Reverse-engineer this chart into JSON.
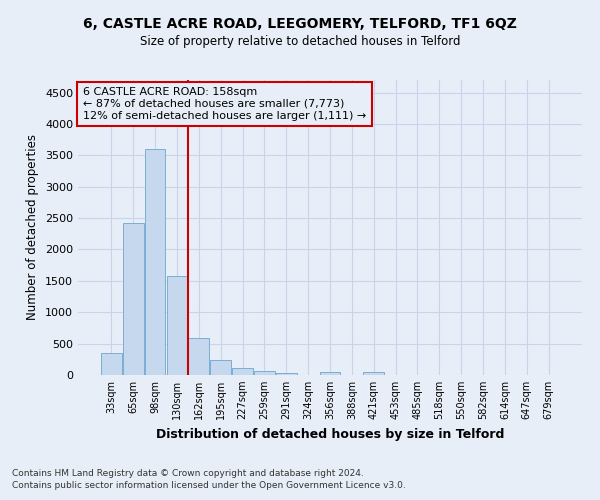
{
  "title": "6, CASTLE ACRE ROAD, LEEGOMERY, TELFORD, TF1 6QZ",
  "subtitle": "Size of property relative to detached houses in Telford",
  "xlabel": "Distribution of detached houses by size in Telford",
  "ylabel": "Number of detached properties",
  "footnote1": "Contains HM Land Registry data © Crown copyright and database right 2024.",
  "footnote2": "Contains public sector information licensed under the Open Government Licence v3.0.",
  "categories": [
    "33sqm",
    "65sqm",
    "98sqm",
    "130sqm",
    "162sqm",
    "195sqm",
    "227sqm",
    "259sqm",
    "291sqm",
    "324sqm",
    "356sqm",
    "388sqm",
    "421sqm",
    "453sqm",
    "485sqm",
    "518sqm",
    "550sqm",
    "582sqm",
    "614sqm",
    "647sqm",
    "679sqm"
  ],
  "values": [
    350,
    2420,
    3600,
    1580,
    590,
    235,
    105,
    60,
    35,
    0,
    50,
    0,
    50,
    0,
    0,
    0,
    0,
    0,
    0,
    0,
    0
  ],
  "bar_color": "#c5d8ee",
  "bar_edge_color": "#7aaed4",
  "grid_color": "#c8d4e8",
  "background_color": "#e8eef8",
  "vline_color": "#cc0000",
  "vline_x": 3.5,
  "annotation_text_line1": "6 CASTLE ACRE ROAD: 158sqm",
  "annotation_text_line2": "← 87% of detached houses are smaller (7,773)",
  "annotation_text_line3": "12% of semi-detached houses are larger (1,111) →",
  "annotation_box_color": "#cc0000",
  "ylim": [
    0,
    4700
  ],
  "yticks": [
    0,
    500,
    1000,
    1500,
    2000,
    2500,
    3000,
    3500,
    4000,
    4500
  ]
}
